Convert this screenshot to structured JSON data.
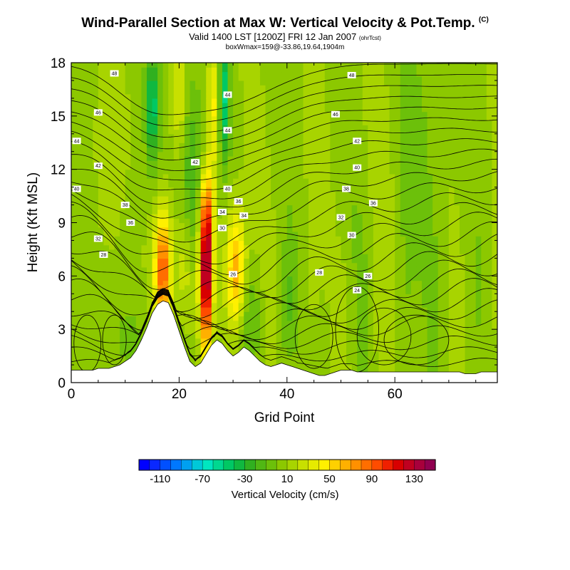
{
  "header": {
    "title": "Wind-Parallel Section at Max W: Vertical Velocity & Pot.Temp.",
    "copyright": "(C)",
    "subtitle": "Valid 1400 LST [1200Z] FRI 12 Jan 2007",
    "subtitle_tag": "(ohrTcst)",
    "boxline": "boxWmax=159@-33.86,19.64,1904m"
  },
  "chart_data": {
    "type": "heatmap",
    "xlabel": "Grid Point",
    "ylabel": "Height (Kft MSL)",
    "xlim": [
      0,
      79
    ],
    "ylim": [
      0,
      18
    ],
    "x_ticks": [
      "0",
      "20",
      "40",
      "60"
    ],
    "y_ticks": [
      "0",
      "3",
      "6",
      "9",
      "12",
      "15",
      "18"
    ],
    "colorbar": {
      "label": "Vertical Velocity (cm/s)",
      "tick_labels": [
        "-110",
        "-70",
        "-30",
        "10",
        "50",
        "90",
        "130"
      ],
      "levels": [
        -130,
        -120,
        -110,
        -100,
        -90,
        -80,
        -70,
        -60,
        -50,
        -40,
        -30,
        -20,
        -10,
        0,
        10,
        20,
        30,
        40,
        50,
        60,
        70,
        80,
        90,
        100,
        110,
        120,
        130,
        140,
        150
      ],
      "colors": [
        "#0000ff",
        "#0a28ff",
        "#0050ff",
        "#0078ff",
        "#00a0f0",
        "#00c8d8",
        "#00e6c0",
        "#00d890",
        "#00c864",
        "#10b840",
        "#30b020",
        "#50b814",
        "#6cc00a",
        "#8cc800",
        "#a8d400",
        "#c8e000",
        "#e6ea00",
        "#fff000",
        "#ffd000",
        "#ffb000",
        "#ff9000",
        "#ff6e00",
        "#ff4c00",
        "#f02000",
        "#d80000",
        "#c00020",
        "#a8003c",
        "#900050"
      ]
    },
    "terrain_kft": [
      0.7,
      0.7,
      0.7,
      0.7,
      0.7,
      0.8,
      0.8,
      0.8,
      0.9,
      1.0,
      1.2,
      1.4,
      1.8,
      2.4,
      3.1,
      3.9,
      4.4,
      4.6,
      4.5,
      3.8,
      2.9,
      2.0,
      1.2,
      0.9,
      1.1,
      1.6,
      2.1,
      2.4,
      2.2,
      1.8,
      1.5,
      1.7,
      2.0,
      1.8,
      1.5,
      1.2,
      1.0,
      0.9,
      1.0,
      1.1,
      1.0,
      0.9,
      0.8,
      0.7,
      0.6,
      0.5,
      0.4,
      0.4,
      0.5,
      0.6,
      0.7,
      0.7,
      0.7,
      0.6,
      0.6,
      0.6,
      0.6,
      0.6,
      0.6,
      0.6,
      0.6,
      0.6,
      0.6,
      0.6,
      0.6,
      0.6,
      0.6,
      0.6,
      0.6,
      0.6,
      0.6,
      0.6,
      0.6,
      0.5,
      0.5,
      0.5,
      0.6,
      0.6,
      0.6,
      0.6
    ],
    "updrafts": [
      {
        "grid_point": 17,
        "height_kft": 6.3,
        "w_cms": 95
      },
      {
        "grid_point": 25,
        "height_kft": 5.8,
        "w_cms": 140
      },
      {
        "grid_point": 30.5,
        "height_kft": 6.2,
        "w_cms": 70
      },
      {
        "grid_point": 26.2,
        "height_kft": 15.5,
        "w_cms": 60
      },
      {
        "grid_point": 20,
        "height_kft": 16,
        "w_cms": 35
      }
    ],
    "downdrafts": [
      {
        "grid_point": 15,
        "height_kft": 15.5,
        "w_cms": -45
      },
      {
        "grid_point": 28.5,
        "height_kft": 16,
        "w_cms": -45
      },
      {
        "grid_point": 22.5,
        "height_kft": 12,
        "w_cms": -25
      }
    ],
    "theta_contour_labels": [
      "48",
      "48",
      "46",
      "46",
      "44",
      "44",
      "44",
      "42",
      "42",
      "42",
      "40",
      "40",
      "40",
      "38",
      "38",
      "36",
      "36",
      "36",
      "34",
      "34",
      "32",
      "32",
      "30",
      "30",
      "28",
      "28",
      "26",
      "26",
      "24"
    ]
  }
}
